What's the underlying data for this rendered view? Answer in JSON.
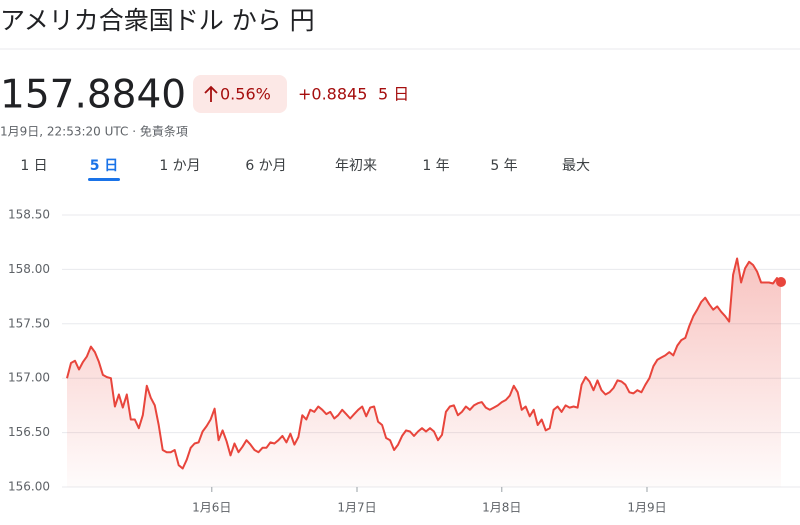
{
  "header": {
    "title": "アメリカ合衆国ドル から 円",
    "price": "157.8840",
    "change_percent": "0.56%",
    "change": "+0.8845",
    "period": "5 日",
    "timestamp": "1月9日, 22:53:20 UTC · 免責条項"
  },
  "tabs": {
    "items": [
      "1 日",
      "5 日",
      "1 か月",
      "6 か月",
      "年初来",
      "1 年",
      "5 年",
      "最大"
    ],
    "active": 1
  },
  "chart_data": {
    "type": "line",
    "color": "#e8453c",
    "grid": true,
    "ylim": [
      156,
      158.5
    ],
    "yticks": [
      {
        "value": 156,
        "label": "156.00"
      },
      {
        "value": 156.5,
        "label": "156.50"
      },
      {
        "value": 157,
        "label": "157.00"
      },
      {
        "value": 157.5,
        "label": "157.50"
      },
      {
        "value": 158,
        "label": "158.00"
      },
      {
        "value": 158.5,
        "label": "158.50"
      }
    ],
    "xlim": [
      0,
      180
    ],
    "xticks": [
      {
        "value": 36.3,
        "label": "1月6日"
      },
      {
        "value": 72.7,
        "label": "1月7日"
      },
      {
        "value": 109,
        "label": "1月8日"
      },
      {
        "value": 145.4,
        "label": "1月9日"
      }
    ],
    "values": [
      157.0,
      157.14,
      157.16,
      157.08,
      157.15,
      157.2,
      157.29,
      157.24,
      157.15,
      157.03,
      157.01,
      157.0,
      156.74,
      156.85,
      156.73,
      156.85,
      156.62,
      156.62,
      156.54,
      156.66,
      156.93,
      156.82,
      156.75,
      156.57,
      156.34,
      156.32,
      156.32,
      156.34,
      156.2,
      156.17,
      156.25,
      156.36,
      156.4,
      156.41,
      156.51,
      156.56,
      156.62,
      156.72,
      156.43,
      156.52,
      156.42,
      156.29,
      156.4,
      156.32,
      156.37,
      156.43,
      156.39,
      156.34,
      156.32,
      156.36,
      156.36,
      156.41,
      156.4,
      156.43,
      156.47,
      156.41,
      156.49,
      156.39,
      156.46,
      156.66,
      156.62,
      156.71,
      156.69,
      156.74,
      156.71,
      156.67,
      156.69,
      156.63,
      156.66,
      156.71,
      156.67,
      156.63,
      156.67,
      156.71,
      156.74,
      156.65,
      156.73,
      156.74,
      156.6,
      156.57,
      156.45,
      156.43,
      156.34,
      156.39,
      156.47,
      156.52,
      156.51,
      156.47,
      156.51,
      156.54,
      156.51,
      156.54,
      156.51,
      156.43,
      156.48,
      156.69,
      156.74,
      156.75,
      156.66,
      156.69,
      156.74,
      156.71,
      156.75,
      156.77,
      156.78,
      156.73,
      156.71,
      156.73,
      156.75,
      156.78,
      156.8,
      156.84,
      156.93,
      156.87,
      156.71,
      156.74,
      156.65,
      156.71,
      156.57,
      156.62,
      156.52,
      156.54,
      156.71,
      156.74,
      156.69,
      156.75,
      156.73,
      156.74,
      156.73,
      156.94,
      157.01,
      156.97,
      156.89,
      156.98,
      156.89,
      156.85,
      156.87,
      156.91,
      156.98,
      156.97,
      156.94,
      156.87,
      156.86,
      156.89,
      156.87,
      156.94,
      157.0,
      157.11,
      157.17,
      157.19,
      157.21,
      157.24,
      157.21,
      157.3,
      157.35,
      157.37,
      157.48,
      157.57,
      157.63,
      157.7,
      157.74,
      157.68,
      157.63,
      157.66,
      157.61,
      157.57,
      157.52,
      157.95,
      158.1,
      157.88,
      158.01,
      158.07,
      158.04,
      157.98,
      157.88,
      157.88,
      157.88,
      157.87,
      157.92,
      157.884
    ]
  }
}
